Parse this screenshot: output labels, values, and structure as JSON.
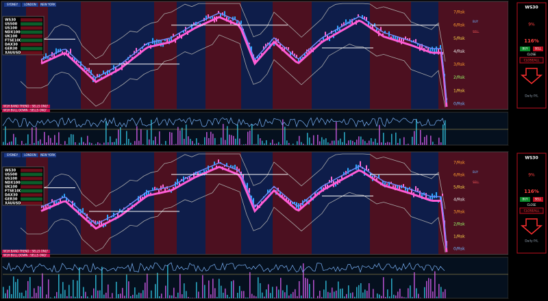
{
  "panels": [
    {
      "sessions": [
        "SYDNEY",
        "LONDON",
        "NEW YORK"
      ],
      "table": {
        "symbols": [
          "WS30",
          "US500",
          "US100",
          "NDX100",
          "UK100",
          "FTSE100",
          "DAX30",
          "GER30",
          "XAUUSD"
        ]
      },
      "risk_labels": [
        "7/Rsk",
        "6/Rsk",
        "5/Rsk",
        "4/Rsk",
        "3/Rsk",
        "2/Rsk",
        "1/Rsk",
        "0/Rsk"
      ],
      "trade_labels": {
        "buy": "BUY",
        "sell": "SELL"
      },
      "indicator_labels": [
        "W1H BAND TREND : SELLS ONLY",
        "W1H BULL DOWN : SELLS ONLY"
      ],
      "side_panel": {
        "symbol": "WS30",
        "pct_small": "9%",
        "pct_large": "116%",
        "buy": "BUY",
        "sell": "SELL",
        "close": "CLOSE",
        "close_all": "CLOSEALL",
        "daily": "Daily P/L"
      }
    },
    {
      "sessions": [
        "SYDNEY",
        "LONDON",
        "NEW YORK"
      ],
      "table": {
        "symbols": [
          "WS30",
          "US500",
          "US100",
          "NDX100",
          "UK100",
          "FTSE100",
          "DAX30",
          "GER30",
          "XAUUSD"
        ]
      },
      "risk_labels": [
        "7/Rsk",
        "6/Rsk",
        "5/Rsk",
        "4/Rsk",
        "3/Rsk",
        "2/Rsk",
        "1/Rsk",
        "0/Rsk"
      ],
      "trade_labels": {
        "buy": "BUY",
        "sell": "SELL"
      },
      "indicator_labels": [
        "W1H BAND TREND : SELLS ONLY",
        "W1H BULL DOWN : SELLS ONLY"
      ],
      "side_panel": {
        "symbol": "WS30",
        "pct_small": "9%",
        "pct_large": "116%",
        "buy": "BUY",
        "sell": "SELL",
        "close": "CLOSE",
        "close_all": "CLOSEALL",
        "daily": "Daily P/L"
      }
    }
  ]
}
